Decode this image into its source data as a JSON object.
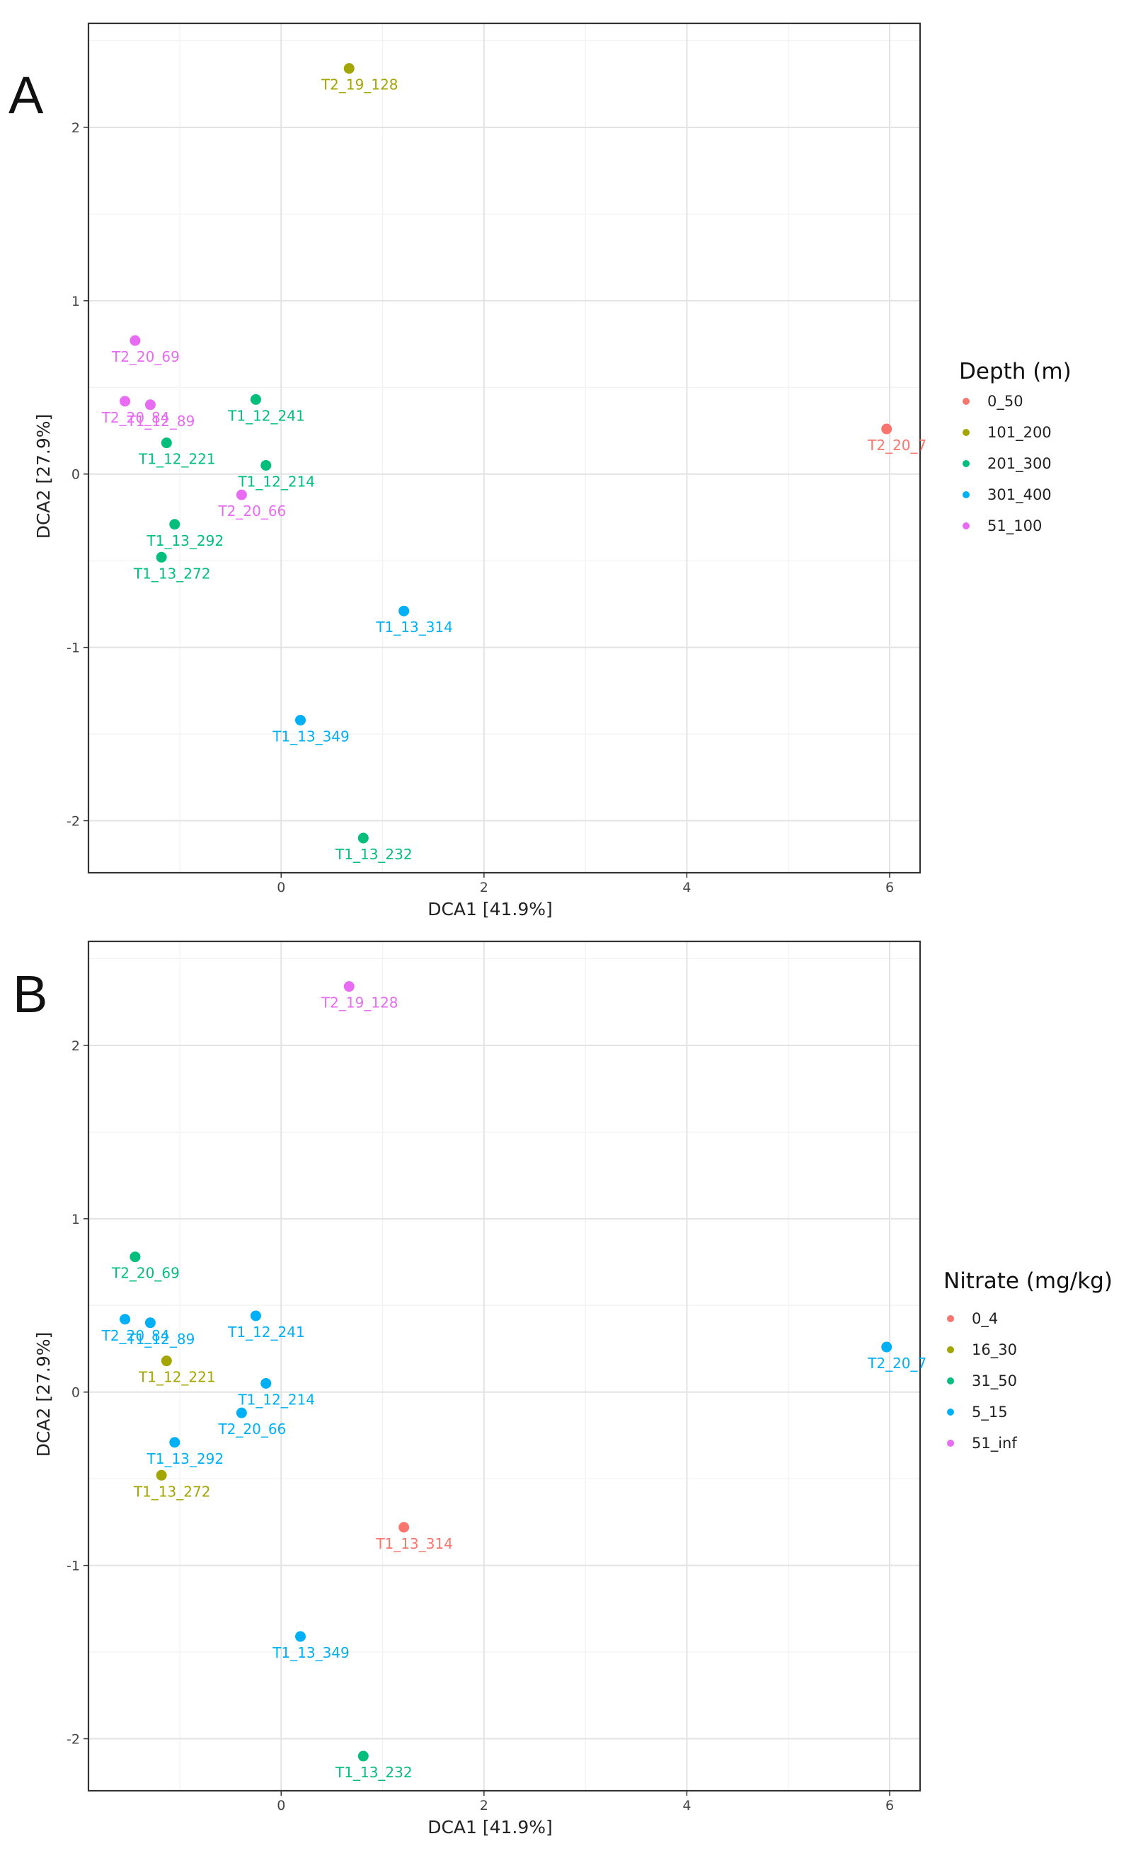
{
  "chart_data": [
    {
      "type": "scatter",
      "panel_letter": "A",
      "xlabel": "DCA1  [41.9%]",
      "ylabel": "DCA2  [27.9%]",
      "xlim": [
        -1.9,
        6.3
      ],
      "ylim": [
        -2.3,
        2.6
      ],
      "x_ticks": [
        0,
        2,
        4,
        6
      ],
      "y_ticks": [
        -2,
        -1,
        0,
        1,
        2
      ],
      "legend": {
        "title": "Depth (m)",
        "position": "right",
        "entries": [
          {
            "label": "0_50",
            "color": "#F8766D"
          },
          {
            "label": "101_200",
            "color": "#A3A500"
          },
          {
            "label": "201_300",
            "color": "#00BF7D"
          },
          {
            "label": "301_400",
            "color": "#00B0F6"
          },
          {
            "label": "51_100",
            "color": "#E76BF3"
          }
        ]
      },
      "points": [
        {
          "label": "T2_19_128",
          "x": 0.67,
          "y": 2.34,
          "group": "101_200",
          "color": "#A3A500"
        },
        {
          "label": "T2_20_69",
          "x": -1.44,
          "y": 0.77,
          "group": "51_100",
          "color": "#E76BF3"
        },
        {
          "label": "T2_20_84",
          "x": -1.54,
          "y": 0.42,
          "group": "51_100",
          "color": "#E76BF3"
        },
        {
          "label": "T1_12_89",
          "x": -1.29,
          "y": 0.4,
          "group": "51_100",
          "color": "#E76BF3"
        },
        {
          "label": "T1_12_241",
          "x": -0.25,
          "y": 0.43,
          "group": "201_300",
          "color": "#00BF7D"
        },
        {
          "label": "T1_12_221",
          "x": -1.13,
          "y": 0.18,
          "group": "201_300",
          "color": "#00BF7D"
        },
        {
          "label": "T1_12_214",
          "x": -0.15,
          "y": 0.05,
          "group": "201_300",
          "color": "#00BF7D"
        },
        {
          "label": "T2_20_66",
          "x": -0.39,
          "y": -0.12,
          "group": "51_100",
          "color": "#E76BF3"
        },
        {
          "label": "T1_13_292",
          "x": -1.05,
          "y": -0.29,
          "group": "201_300",
          "color": "#00BF7D"
        },
        {
          "label": "T1_13_272",
          "x": -1.18,
          "y": -0.48,
          "group": "201_300",
          "color": "#00BF7D"
        },
        {
          "label": "T1_13_314",
          "x": 1.21,
          "y": -0.79,
          "group": "301_400",
          "color": "#00B0F6"
        },
        {
          "label": "T1_13_349",
          "x": 0.19,
          "y": -1.42,
          "group": "301_400",
          "color": "#00B0F6"
        },
        {
          "label": "T1_13_232",
          "x": 0.81,
          "y": -2.1,
          "group": "201_300",
          "color": "#00BF7D"
        },
        {
          "label": "T2_20_7",
          "x": 5.97,
          "y": 0.26,
          "group": "0_50",
          "color": "#F8766D"
        }
      ]
    },
    {
      "type": "scatter",
      "panel_letter": "B",
      "xlabel": "DCA1  [41.9%]",
      "ylabel": "DCA2  [27.9%]",
      "xlim": [
        -1.9,
        6.3
      ],
      "ylim": [
        -2.3,
        2.6
      ],
      "x_ticks": [
        0,
        2,
        4,
        6
      ],
      "y_ticks": [
        -2,
        -1,
        0,
        1,
        2
      ],
      "legend": {
        "title": "Nitrate (mg/kg)",
        "position": "right",
        "entries": [
          {
            "label": "0_4",
            "color": "#F8766D"
          },
          {
            "label": "16_30",
            "color": "#A3A500"
          },
          {
            "label": "31_50",
            "color": "#00BF7D"
          },
          {
            "label": "5_15",
            "color": "#00B0F6"
          },
          {
            "label": "51_inf",
            "color": "#E76BF3"
          }
        ]
      },
      "points": [
        {
          "label": "T2_19_128",
          "x": 0.67,
          "y": 2.34,
          "group": "51_inf",
          "color": "#E76BF3"
        },
        {
          "label": "T2_20_69",
          "x": -1.44,
          "y": 0.78,
          "group": "31_50",
          "color": "#00BF7D"
        },
        {
          "label": "T2_20_84",
          "x": -1.54,
          "y": 0.42,
          "group": "5_15",
          "color": "#00B0F6"
        },
        {
          "label": "T1_12_89",
          "x": -1.29,
          "y": 0.4,
          "group": "5_15",
          "color": "#00B0F6"
        },
        {
          "label": "T1_12_241",
          "x": -0.25,
          "y": 0.44,
          "group": "5_15",
          "color": "#00B0F6"
        },
        {
          "label": "T1_12_221",
          "x": -1.13,
          "y": 0.18,
          "group": "16_30",
          "color": "#A3A500"
        },
        {
          "label": "T1_12_214",
          "x": -0.15,
          "y": 0.05,
          "group": "5_15",
          "color": "#00B0F6"
        },
        {
          "label": "T2_20_66",
          "x": -0.39,
          "y": -0.12,
          "group": "5_15",
          "color": "#00B0F6"
        },
        {
          "label": "T1_13_292",
          "x": -1.05,
          "y": -0.29,
          "group": "5_15",
          "color": "#00B0F6"
        },
        {
          "label": "T1_13_272",
          "x": -1.18,
          "y": -0.48,
          "group": "16_30",
          "color": "#A3A500"
        },
        {
          "label": "T1_13_314",
          "x": 1.21,
          "y": -0.78,
          "group": "0_4",
          "color": "#F8766D"
        },
        {
          "label": "T1_13_349",
          "x": 0.19,
          "y": -1.41,
          "group": "5_15",
          "color": "#00B0F6"
        },
        {
          "label": "T1_13_232",
          "x": 0.81,
          "y": -2.1,
          "group": "31_50",
          "color": "#00BF7D"
        },
        {
          "label": "T2_20_7",
          "x": 5.97,
          "y": 0.26,
          "group": "5_15",
          "color": "#00B0F6"
        }
      ]
    }
  ]
}
